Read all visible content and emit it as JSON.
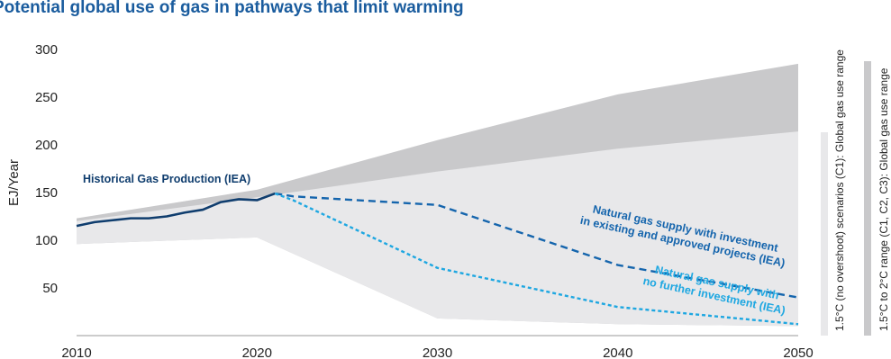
{
  "chart_data": {
    "type": "area",
    "title": "Potential global use of gas in pathways that limit warming",
    "xlabel": "",
    "ylabel": "EJ/Year",
    "xlim": [
      2010,
      2050
    ],
    "ylim": [
      0,
      300
    ],
    "x_ticks": [
      "2010",
      "2020",
      "2030",
      "2040",
      "2050"
    ],
    "y_ticks": [
      "50",
      "100",
      "150",
      "200",
      "250",
      "300"
    ],
    "grid": false,
    "legend_placement": "right (vertical bars)",
    "colors": {
      "range_wide": "#c9c9cb",
      "range_narrow": "#e8e8ea",
      "historical": "#0f3d6e",
      "existing_projects": "#1565ad",
      "no_investment": "#1ea7e1",
      "title": "#1a5c9e"
    },
    "bands": [
      {
        "name": "1.5°C to 2°C range (C1, C2, C3): Global gas use range",
        "x": [
          2010,
          2020,
          2030,
          2040,
          2050
        ],
        "upper": [
          123,
          153,
          205,
          253,
          285
        ],
        "lower": [
          96,
          103,
          18,
          12,
          10
        ]
      },
      {
        "name": "1.5°C (no overshoot) scenarios (C1): Global gas use range",
        "x": [
          2010,
          2020,
          2030,
          2040,
          2050
        ],
        "upper": [
          120,
          145,
          172,
          196,
          214
        ],
        "lower": [
          96,
          103,
          18,
          12,
          10
        ]
      }
    ],
    "series": [
      {
        "name": "Historical Gas Production (IEA)",
        "style": "solid",
        "x": [
          2010,
          2011,
          2012,
          2013,
          2014,
          2015,
          2016,
          2017,
          2018,
          2019,
          2020,
          2021
        ],
        "values": [
          115,
          119,
          121,
          123,
          123,
          125,
          129,
          132,
          140,
          143,
          142,
          149
        ]
      },
      {
        "name": "Natural gas supply with investment in existing and approved projects (IEA)",
        "style": "dashed",
        "x": [
          2021,
          2022,
          2030,
          2040,
          2050
        ],
        "values": [
          149,
          146,
          137,
          74,
          40
        ]
      },
      {
        "name": "Natural gas supply with no further investment (IEA)",
        "style": "dotted",
        "x": [
          2021,
          2022,
          2030,
          2040,
          2050
        ],
        "values": [
          149,
          142,
          71,
          30,
          12
        ]
      }
    ],
    "annotations": {
      "historical": "Historical Gas Production (IEA)",
      "existing_line1": "Natural gas supply with investment",
      "existing_line2": "in existing and approved projects (IEA)",
      "noinv_line1": "Natural gas supply with",
      "noinv_line2": "no further investment (IEA)"
    },
    "legend": [
      "1.5°C (no overshoot) scenarios (C1): Global gas use range",
      "1.5°C to 2°C range (C1, C2, C3): Global gas use range"
    ]
  }
}
